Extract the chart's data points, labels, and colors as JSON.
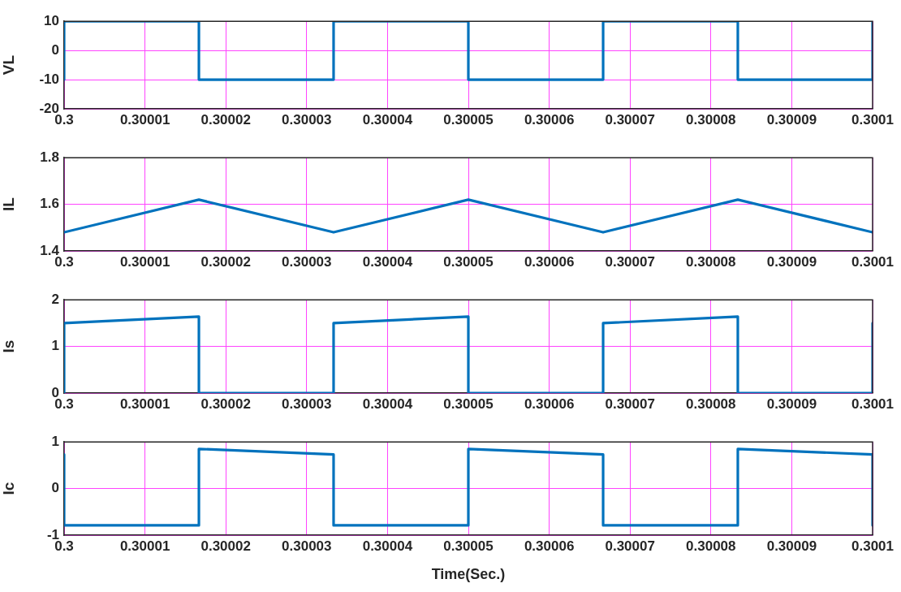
{
  "chart_data": [
    {
      "type": "line",
      "ylabel": "VL",
      "xlim": [
        0.3,
        0.3001
      ],
      "xticks": [
        0.3,
        0.30001,
        0.30002,
        0.30003,
        0.30004,
        0.30005,
        0.30006,
        0.30007,
        0.30008,
        0.30009,
        0.3001
      ],
      "ylim": [
        -20,
        10
      ],
      "yticks": [
        -20,
        -10,
        0,
        10
      ],
      "grid": true,
      "series": [
        {
          "color": "#0072bd",
          "x": [
            0.3,
            0.3,
            0.30001667,
            0.30001667,
            0.30003333,
            0.30003333,
            0.30005,
            0.30005,
            0.30006667,
            0.30006667,
            0.30008333,
            0.30008333,
            0.3001,
            0.3001
          ],
          "values": [
            -10,
            10,
            10,
            -10,
            -10,
            10,
            10,
            -10,
            -10,
            10,
            10,
            -10,
            -10,
            10
          ]
        }
      ]
    },
    {
      "type": "line",
      "ylabel": "IL",
      "xlim": [
        0.3,
        0.3001
      ],
      "xticks": [
        0.3,
        0.30001,
        0.30002,
        0.30003,
        0.30004,
        0.30005,
        0.30006,
        0.30007,
        0.30008,
        0.30009,
        0.3001
      ],
      "ylim": [
        1.4,
        1.8
      ],
      "yticks": [
        1.4,
        1.6,
        1.8
      ],
      "grid": true,
      "series": [
        {
          "color": "#0072bd",
          "x": [
            0.3,
            0.30001667,
            0.30003333,
            0.30005,
            0.30006667,
            0.30008333,
            0.3001
          ],
          "values": [
            1.48,
            1.62,
            1.48,
            1.62,
            1.48,
            1.62,
            1.48
          ]
        }
      ]
    },
    {
      "type": "line",
      "ylabel": "Is",
      "xlim": [
        0.3,
        0.3001
      ],
      "xticks": [
        0.3,
        0.30001,
        0.30002,
        0.30003,
        0.30004,
        0.30005,
        0.30006,
        0.30007,
        0.30008,
        0.30009,
        0.3001
      ],
      "ylim": [
        0,
        2
      ],
      "yticks": [
        0,
        1,
        2
      ],
      "grid": true,
      "series": [
        {
          "color": "#0072bd",
          "x": [
            0.3,
            0.3,
            0.30001667,
            0.30001667,
            0.30003333,
            0.30003333,
            0.30005,
            0.30005,
            0.30006667,
            0.30006667,
            0.30008333,
            0.30008333,
            0.3001,
            0.3001
          ],
          "values": [
            0,
            1.5,
            1.64,
            0,
            0,
            1.5,
            1.64,
            0,
            0,
            1.5,
            1.64,
            0,
            0,
            1.5
          ]
        }
      ]
    },
    {
      "type": "line",
      "ylabel": "Ic",
      "xlabel": "Time(Sec.)",
      "xlim": [
        0.3,
        0.3001
      ],
      "xticks": [
        0.3,
        0.30001,
        0.30002,
        0.30003,
        0.30004,
        0.30005,
        0.30006,
        0.30007,
        0.30008,
        0.30009,
        0.3001
      ],
      "ylim": [
        -1,
        1
      ],
      "yticks": [
        -1,
        0,
        1
      ],
      "grid": true,
      "series": [
        {
          "color": "#0072bd",
          "x": [
            0.3,
            0.3,
            0.30001667,
            0.30001667,
            0.30003333,
            0.30003333,
            0.30005,
            0.30005,
            0.30006667,
            0.30006667,
            0.30008333,
            0.30008333,
            0.3001,
            0.3001
          ],
          "values": [
            0.73,
            -0.79,
            -0.79,
            0.85,
            0.73,
            -0.79,
            -0.79,
            0.85,
            0.73,
            -0.79,
            -0.79,
            0.85,
            0.73,
            -0.79
          ]
        }
      ]
    }
  ]
}
